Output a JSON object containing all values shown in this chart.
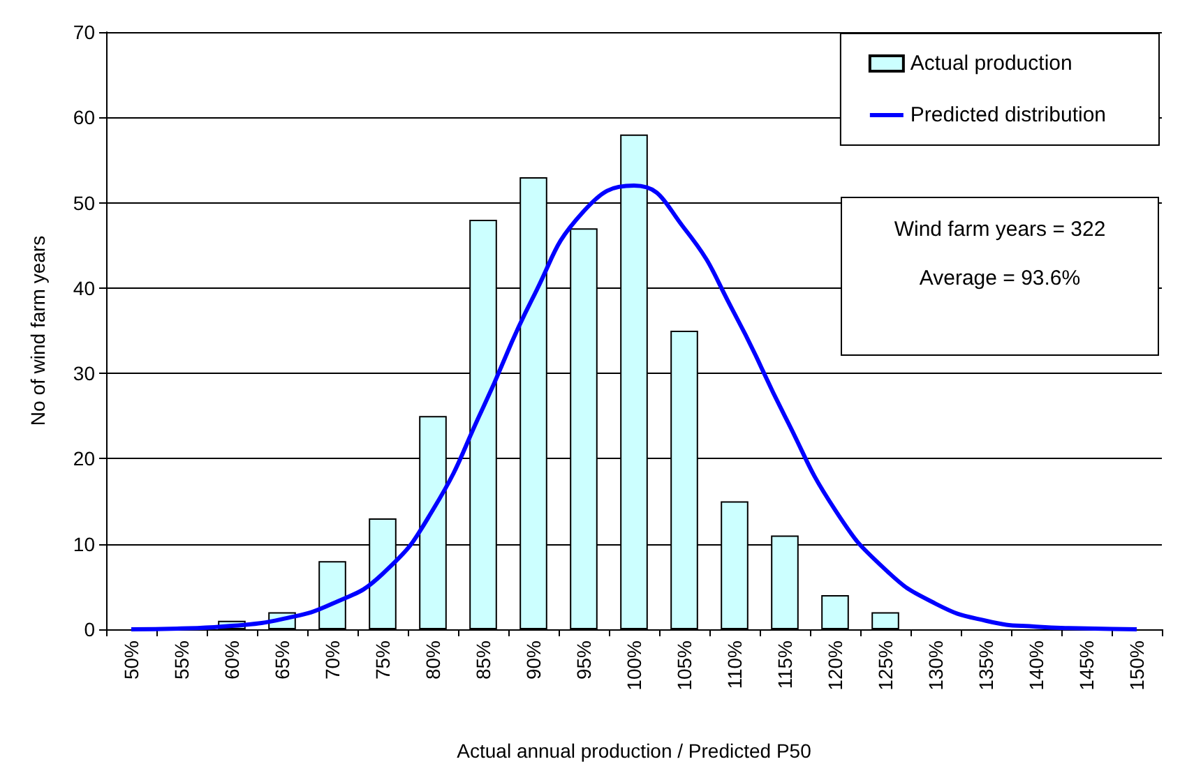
{
  "chart_data": {
    "type": "bar",
    "xlabel": "Actual annual production / Predicted P50",
    "ylabel": "No of wind farm years",
    "categories": [
      "50%",
      "55%",
      "60%",
      "65%",
      "70%",
      "75%",
      "80%",
      "85%",
      "90%",
      "95%",
      "100%",
      "105%",
      "110%",
      "115%",
      "120%",
      "125%",
      "130%",
      "135%",
      "140%",
      "145%",
      "150%"
    ],
    "series": [
      {
        "name": "Actual production",
        "color": "#ccffff",
        "values": [
          0,
          0,
          1,
          2,
          8,
          13,
          25,
          48,
          53,
          47,
          58,
          35,
          15,
          11,
          4,
          2,
          0,
          0,
          0,
          0,
          0
        ]
      },
      {
        "name": "Predicted distribution",
        "type": "line",
        "color": "#0000ff",
        "values": [
          0,
          0.1,
          0.4,
          1.2,
          3,
          6.5,
          14,
          26,
          39,
          49,
          52,
          47,
          37,
          25,
          14,
          7,
          3,
          1,
          0.3,
          0.1,
          0
        ]
      }
    ],
    "annotations": [
      "Wind farm years = 322",
      "Average = 93.6%"
    ],
    "ylim": [
      0,
      70
    ],
    "yticks": [
      0,
      10,
      20,
      30,
      40,
      50,
      60,
      70
    ],
    "grid": "y",
    "legend": "top right",
    "marker": "none",
    "line_style": "solid"
  }
}
